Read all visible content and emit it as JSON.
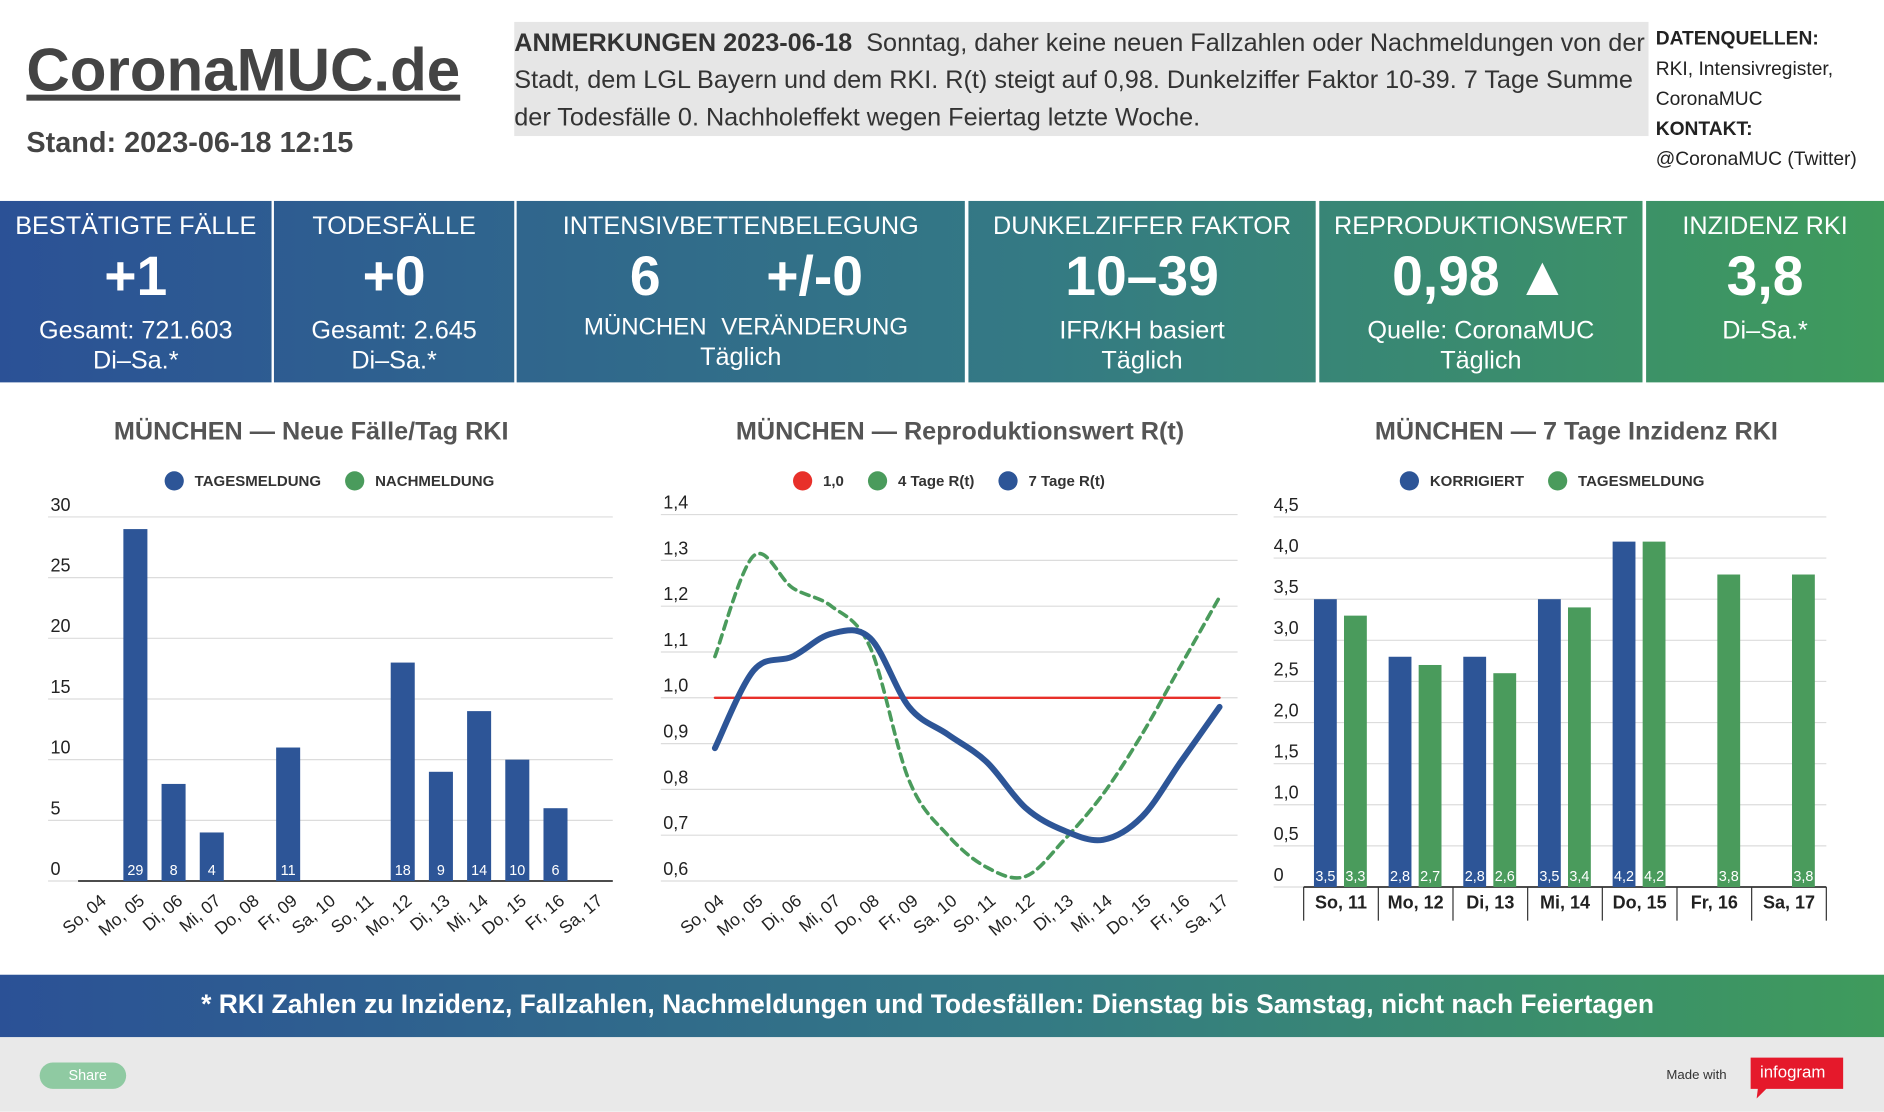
{
  "header": {
    "logo": "CoronaMUC.de",
    "stand": "Stand: 2023-06-18 12:15"
  },
  "notes": {
    "label": "ANMERKUNGEN 2023-06-18",
    "text": "Sonntag, daher keine neuen Fallzahlen oder Nachmeldungen von der Stadt, dem LGL Bayern und dem RKI. R(t) steigt auf 0,98. Dunkelziffer Faktor 10-39. 7 Tage Summe der Todesfälle 0. Nachholeffekt wegen Feiertag letzte Woche."
  },
  "sources": {
    "label": "DATENQUELLEN:",
    "text": "RKI, Intensivregister, CoronaMUC",
    "contact_label": "KONTAKT:",
    "contact": "@CoronaMUC (Twitter)"
  },
  "kpis": [
    {
      "title": "BESTÄTIGTE FÄLLE",
      "values": [
        "+1"
      ],
      "lines": [
        "Gesamt: 721.603",
        "Di–Sa.*"
      ]
    },
    {
      "title": "TODESFÄLLE",
      "values": [
        "+0"
      ],
      "lines": [
        "Gesamt: 2.645",
        "Di–Sa.*"
      ]
    },
    {
      "title": "INTENSIVBETTENBELEGUNG",
      "values": [
        "6",
        "+/-0"
      ],
      "sublabels": [
        "MÜNCHEN",
        "VERÄNDERUNG"
      ],
      "lines": [
        "Täglich"
      ]
    },
    {
      "title": "DUNKELZIFFER FAKTOR",
      "values": [
        "10–39"
      ],
      "lines": [
        "IFR/KH basiert",
        "Täglich"
      ]
    },
    {
      "title": "REPRODUKTIONSWERT",
      "values": [
        "0,98 ▲"
      ],
      "lines": [
        "Quelle: CoronaMUC",
        "Täglich"
      ]
    },
    {
      "title": "INZIDENZ RKI",
      "values": [
        "3,8"
      ],
      "lines": [
        "Di–Sa.*"
      ]
    }
  ],
  "chart_data": [
    {
      "type": "bar",
      "title": "MÜNCHEN — Neue Fälle/Tag RKI",
      "categories": [
        "So, 04",
        "Mo, 05",
        "Di, 06",
        "Mi, 07",
        "Do, 08",
        "Fr, 09",
        "Sa, 10",
        "So, 11",
        "Mo, 12",
        "Di, 13",
        "Mi, 14",
        "Do, 15",
        "Fr, 16",
        "Sa, 17"
      ],
      "series": [
        {
          "name": "TAGESMELDUNG",
          "color": "#2d5597",
          "values": [
            null,
            29,
            8,
            4,
            null,
            11,
            null,
            null,
            18,
            9,
            14,
            10,
            6,
            null
          ]
        },
        {
          "name": "NACHMELDUNG",
          "color": "#4a9b5c",
          "values": [
            null,
            null,
            null,
            null,
            null,
            null,
            null,
            null,
            null,
            null,
            null,
            null,
            null,
            null
          ]
        }
      ],
      "ylim": [
        0,
        30
      ],
      "yticks": [
        0,
        5,
        10,
        15,
        20,
        25,
        30
      ],
      "grid": true
    },
    {
      "type": "line",
      "title": "MÜNCHEN — Reproduktionswert R(t)",
      "categories": [
        "So, 04",
        "Mo, 05",
        "Di, 06",
        "Mi, 07",
        "Do, 08",
        "Fr, 09",
        "Sa, 10",
        "So, 11",
        "Mo, 12",
        "Di, 13",
        "Mi, 14",
        "Do, 15",
        "Fr, 16",
        "Sa, 17"
      ],
      "series": [
        {
          "name": "1,0",
          "color": "#e8302a",
          "values": [
            1.0,
            1.0,
            1.0,
            1.0,
            1.0,
            1.0,
            1.0,
            1.0,
            1.0,
            1.0,
            1.0,
            1.0,
            1.0,
            1.0
          ]
        },
        {
          "name": "4 Tage R(t)",
          "color": "#4a9b5c",
          "dashed": true,
          "values": [
            1.09,
            1.31,
            1.24,
            1.2,
            1.11,
            0.82,
            0.7,
            0.63,
            0.61,
            0.69,
            0.79,
            0.92,
            1.07,
            1.22
          ]
        },
        {
          "name": "7 Tage R(t)",
          "color": "#2d5597",
          "values": [
            0.89,
            1.06,
            1.09,
            1.14,
            1.13,
            0.98,
            0.92,
            0.86,
            0.76,
            0.71,
            0.69,
            0.74,
            0.86,
            0.98
          ]
        }
      ],
      "ylim": [
        0.6,
        1.4
      ],
      "yticks": [
        {
          "value": 0.6,
          "label": "0,6"
        },
        {
          "value": 0.7,
          "label": "0,7"
        },
        {
          "value": 0.8,
          "label": "0,8"
        },
        {
          "value": 0.9,
          "label": "0,9"
        },
        {
          "value": 1.0,
          "label": "1,0"
        },
        {
          "value": 1.1,
          "label": "1,1"
        },
        {
          "value": 1.2,
          "label": "1,2"
        },
        {
          "value": 1.3,
          "label": "1,3"
        },
        {
          "value": 1.4,
          "label": "1,4"
        }
      ],
      "grid": true
    },
    {
      "type": "bar",
      "title": "MÜNCHEN — 7 Tage Inzidenz RKI",
      "categories": [
        "So, 11",
        "Mo, 12",
        "Di, 13",
        "Mi, 14",
        "Do, 15",
        "Fr, 16",
        "Sa, 17"
      ],
      "series": [
        {
          "name": "KORRIGIERT",
          "color": "#2d5597",
          "values": [
            3.5,
            2.8,
            2.8,
            3.5,
            4.2,
            null,
            null
          ],
          "value_labels": [
            "3,5",
            "2,8",
            "2,8",
            "3,5",
            "4,2",
            null,
            null
          ]
        },
        {
          "name": "TAGESMELDUNG",
          "color": "#4a9b5c",
          "values": [
            3.3,
            2.7,
            2.6,
            3.4,
            4.2,
            3.8,
            3.8
          ],
          "value_labels": [
            "3,3",
            "2,7",
            "2,6",
            "3,4",
            "4,2",
            "3,8",
            "3,8"
          ]
        }
      ],
      "ylim": [
        0,
        4.5
      ],
      "yticks": [
        0,
        {
          "value": 0.5,
          "label": "0,5"
        },
        {
          "value": 1.0,
          "label": "1,0"
        },
        {
          "value": 1.5,
          "label": "1,5"
        },
        {
          "value": 2.0,
          "label": "2,0"
        },
        {
          "value": 2.5,
          "label": "2,5"
        },
        {
          "value": 3.0,
          "label": "3,0"
        },
        {
          "value": 3.5,
          "label": "3,5"
        },
        {
          "value": 4.0,
          "label": "4,0"
        },
        {
          "value": 4.5,
          "label": "4,5"
        }
      ],
      "grid": true
    }
  ],
  "footnote": "* RKI Zahlen zu Inzidenz, Fallzahlen, Nachmeldungen und Todesfällen: Dienstag bis Samstag, nicht nach Feiertagen",
  "share": "Share",
  "made_with": "Made with",
  "brand": "infogram"
}
